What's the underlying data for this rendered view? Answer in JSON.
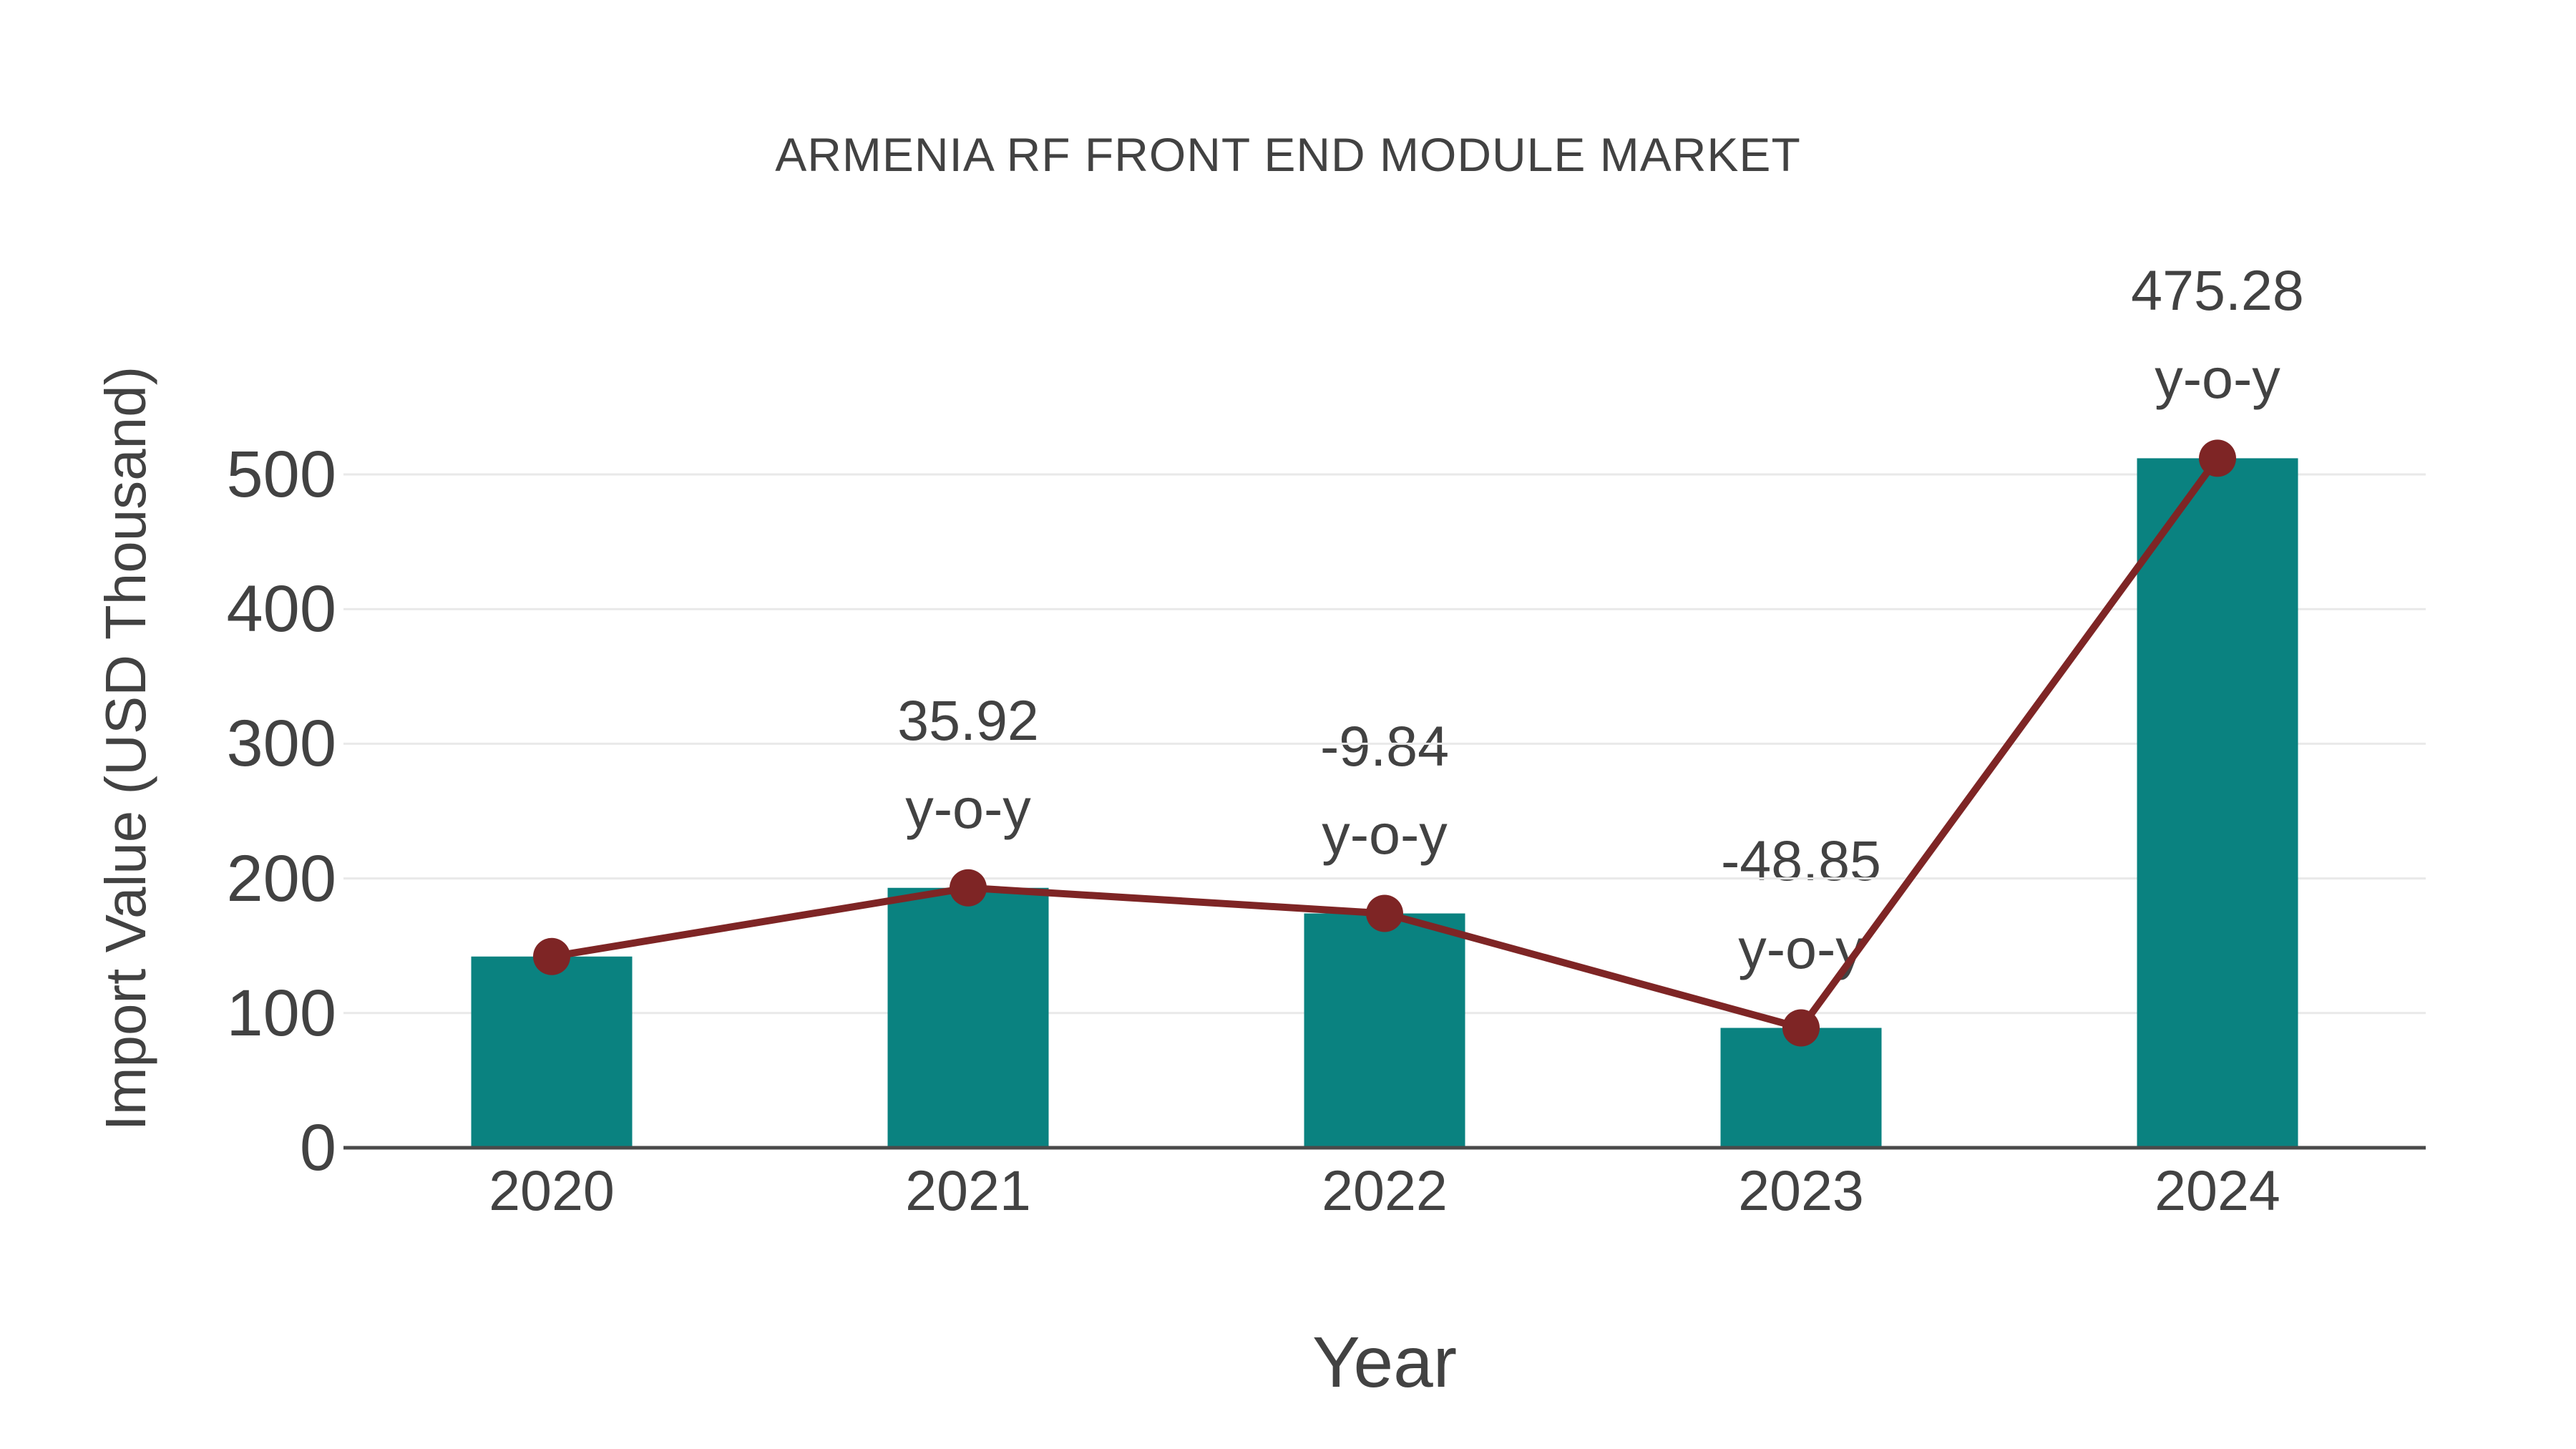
{
  "chart_data": {
    "type": "bar+line",
    "title": "ARMENIA RF FRONT END MODULE MARKET",
    "xlabel": "Year",
    "ylabel": "Import Value (USD Thousand)",
    "categories": [
      "2020",
      "2021",
      "2022",
      "2023",
      "2024"
    ],
    "series": [
      {
        "name": "Import Value bars",
        "type": "bar",
        "color": "#0A8280",
        "values": [
          142,
          193,
          174,
          89,
          512
        ]
      },
      {
        "name": "Import Value trend line",
        "type": "line",
        "color": "#7E2525",
        "values": [
          142,
          193,
          174,
          89,
          512
        ]
      }
    ],
    "annotations": [
      {
        "category": "2021",
        "value": "35.92",
        "suffix": "y-o-y"
      },
      {
        "category": "2022",
        "value": "-9.84",
        "suffix": "y-o-y"
      },
      {
        "category": "2023",
        "value": "-48.85",
        "suffix": "y-o-y"
      },
      {
        "category": "2024",
        "value": "475.28",
        "suffix": "y-o-y"
      }
    ],
    "ylim": [
      0,
      530
    ],
    "yticks": [
      0,
      100,
      200,
      300,
      400,
      500
    ],
    "grid": true,
    "legend": false,
    "colors": {
      "bar": "#0A8280",
      "line": "#7E2525",
      "marker": "#7E2525",
      "grid": "#E9E9E9",
      "axis": "#4A4A4A",
      "text": "#424242"
    }
  }
}
